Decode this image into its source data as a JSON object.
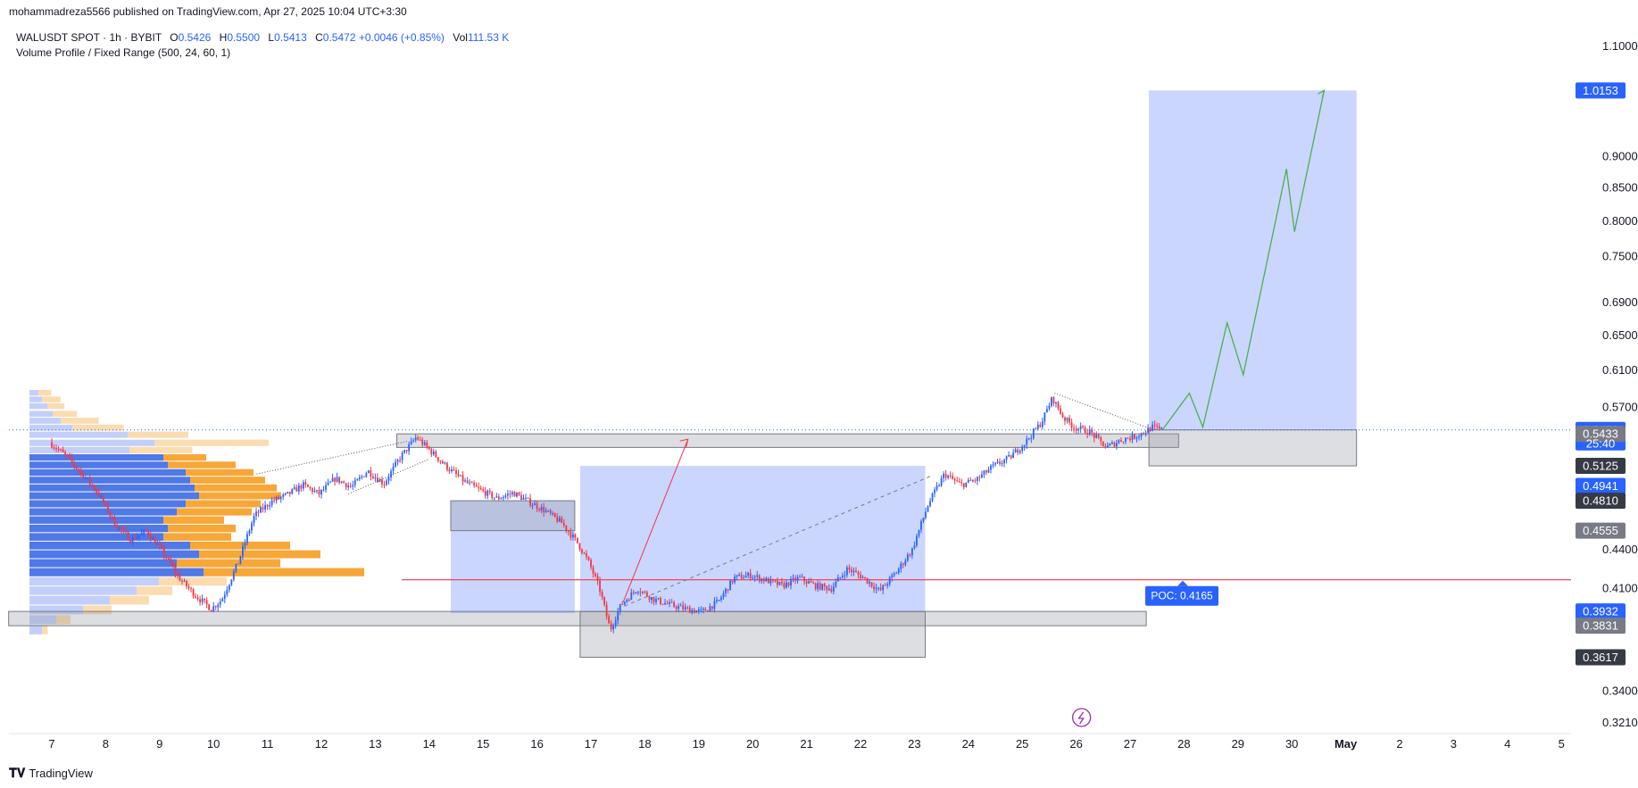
{
  "header": {
    "publish_line": "mohammadreza5566 published on TradingView.com, Apr 27, 2025 10:04 UTC+3:30"
  },
  "legend": {
    "symbol": "WALUSDT SPOT · 1h · BYBIT",
    "o_label": "O",
    "o_value": "0.5426",
    "h_label": "H",
    "h_value": "0.5500",
    "l_label": "L",
    "l_value": "0.5413",
    "c_label": "C",
    "c_value": "0.5472",
    "change": "+0.0046 (+0.85%)",
    "vol_label": "Vol",
    "vol_value": "111.53 K",
    "indicator": "Volume Profile / Fixed Range (500, 24, 60, 1)"
  },
  "footer": {
    "brand": "TradingView"
  },
  "poc_label": "POC: 0.4165",
  "countdown": "25:40",
  "colors": {
    "up": "#2962ff",
    "down": "#f23645",
    "zone_blue": "#3d6bff",
    "zone_grey": "#b2b5be",
    "vp_up": "#4f78e8",
    "vp_down": "#f7a738",
    "target_path": "#4caf50",
    "poc_line": "#f23645"
  },
  "chart_data": {
    "type": "candlestick",
    "symbol": "WALUSDT",
    "timeframe": "1h",
    "y_scale": "log",
    "ylim": [
      0.315,
      1.12
    ],
    "y_ticks": [
      "1.1000",
      "0.9000",
      "0.8500",
      "0.8000",
      "0.7500",
      "0.6900",
      "0.6500",
      "0.6100",
      "0.5700",
      "0.4400",
      "0.4100",
      "0.3400",
      "0.3210"
    ],
    "x_ticks": [
      "7",
      "8",
      "9",
      "10",
      "11",
      "12",
      "13",
      "14",
      "15",
      "16",
      "17",
      "18",
      "19",
      "20",
      "21",
      "22",
      "23",
      "24",
      "25",
      "26",
      "27",
      "28",
      "29",
      "30",
      "May",
      "2",
      "3",
      "4",
      "5"
    ],
    "price_labels": [
      {
        "value": "1.0153",
        "style": "blue"
      },
      {
        "value": "0.5472",
        "style": "blue"
      },
      {
        "value": "0.5433",
        "style": "grey"
      },
      {
        "value": "0.5125",
        "style": "dark"
      },
      {
        "value": "0.4941",
        "style": "blue"
      },
      {
        "value": "0.4810",
        "style": "dark"
      },
      {
        "value": "0.4555",
        "style": "grey"
      },
      {
        "value": "0.3932",
        "style": "blue"
      },
      {
        "value": "0.3831",
        "style": "grey"
      },
      {
        "value": "0.3617",
        "style": "dark"
      }
    ],
    "price_path": [
      [
        0.0,
        0.535
      ],
      [
        0.3,
        0.522
      ],
      [
        0.6,
        0.505
      ],
      [
        0.9,
        0.488
      ],
      [
        1.2,
        0.462
      ],
      [
        1.5,
        0.448
      ],
      [
        1.8,
        0.455
      ],
      [
        2.1,
        0.438
      ],
      [
        2.4,
        0.418
      ],
      [
        2.7,
        0.405
      ],
      [
        3.0,
        0.395
      ],
      [
        3.2,
        0.402
      ],
      [
        3.5,
        0.43
      ],
      [
        3.8,
        0.468
      ],
      [
        4.1,
        0.48
      ],
      [
        4.4,
        0.486
      ],
      [
        4.7,
        0.495
      ],
      [
        5.0,
        0.487
      ],
      [
        5.3,
        0.501
      ],
      [
        5.6,
        0.493
      ],
      [
        5.9,
        0.508
      ],
      [
        6.2,
        0.496
      ],
      [
        6.5,
        0.52
      ],
      [
        6.8,
        0.54
      ],
      [
        7.1,
        0.525
      ],
      [
        7.4,
        0.51
      ],
      [
        7.7,
        0.498
      ],
      [
        8.0,
        0.49
      ],
      [
        8.3,
        0.483
      ],
      [
        8.6,
        0.488
      ],
      [
        8.9,
        0.48
      ],
      [
        9.2,
        0.472
      ],
      [
        9.5,
        0.462
      ],
      [
        9.8,
        0.445
      ],
      [
        10.0,
        0.43
      ],
      [
        10.2,
        0.41
      ],
      [
        10.4,
        0.38
      ],
      [
        10.6,
        0.398
      ],
      [
        10.9,
        0.41
      ],
      [
        11.2,
        0.402
      ],
      [
        11.5,
        0.398
      ],
      [
        11.8,
        0.395
      ],
      [
        12.1,
        0.393
      ],
      [
        12.4,
        0.4
      ],
      [
        12.7,
        0.418
      ],
      [
        13.0,
        0.42
      ],
      [
        13.3,
        0.416
      ],
      [
        13.6,
        0.412
      ],
      [
        13.9,
        0.418
      ],
      [
        14.2,
        0.412
      ],
      [
        14.5,
        0.41
      ],
      [
        14.8,
        0.425
      ],
      [
        15.1,
        0.418
      ],
      [
        15.4,
        0.408
      ],
      [
        15.7,
        0.422
      ],
      [
        16.0,
        0.44
      ],
      [
        16.3,
        0.478
      ],
      [
        16.6,
        0.505
      ],
      [
        16.9,
        0.495
      ],
      [
        17.2,
        0.5
      ],
      [
        17.5,
        0.512
      ],
      [
        17.8,
        0.52
      ],
      [
        18.1,
        0.535
      ],
      [
        18.4,
        0.555
      ],
      [
        18.6,
        0.58
      ],
      [
        18.8,
        0.56
      ],
      [
        19.0,
        0.55
      ],
      [
        19.3,
        0.545
      ],
      [
        19.6,
        0.53
      ],
      [
        19.9,
        0.538
      ],
      [
        20.1,
        0.54
      ],
      [
        20.3,
        0.545
      ],
      [
        20.45,
        0.55
      ],
      [
        20.6,
        0.5472
      ]
    ],
    "target_path": [
      [
        20.6,
        0.5472
      ],
      [
        21.1,
        0.585
      ],
      [
        21.35,
        0.55
      ],
      [
        21.8,
        0.665
      ],
      [
        22.1,
        0.605
      ],
      [
        22.9,
        0.88
      ],
      [
        23.05,
        0.785
      ],
      [
        23.6,
        1.0153
      ]
    ],
    "poc": 0.4165,
    "zones": [
      {
        "kind": "grey",
        "x0": 6.4,
        "x1": 20.9,
        "y0": 0.5433,
        "y1": 0.53
      },
      {
        "kind": "grey",
        "x0": -0.8,
        "x1": 20.3,
        "y0": 0.3932,
        "y1": 0.3831
      },
      {
        "kind": "blue",
        "x0": 7.4,
        "x1": 9.7,
        "y0": 0.481,
        "y1": 0.392
      },
      {
        "kind": "grey",
        "x0": 7.4,
        "x1": 9.7,
        "y0": 0.481,
        "y1": 0.4555
      },
      {
        "kind": "blue",
        "x0": 9.8,
        "x1": 16.2,
        "y0": 0.5125,
        "y1": 0.3931
      },
      {
        "kind": "grey",
        "x0": 9.8,
        "x1": 16.2,
        "y0": 0.3931,
        "y1": 0.3617
      },
      {
        "kind": "blue",
        "x0": 20.35,
        "x1": 24.2,
        "y0": 1.0153,
        "y1": 0.5472
      },
      {
        "kind": "grey",
        "x0": 20.35,
        "x1": 24.2,
        "y0": 0.5472,
        "y1": 0.5125
      }
    ]
  }
}
